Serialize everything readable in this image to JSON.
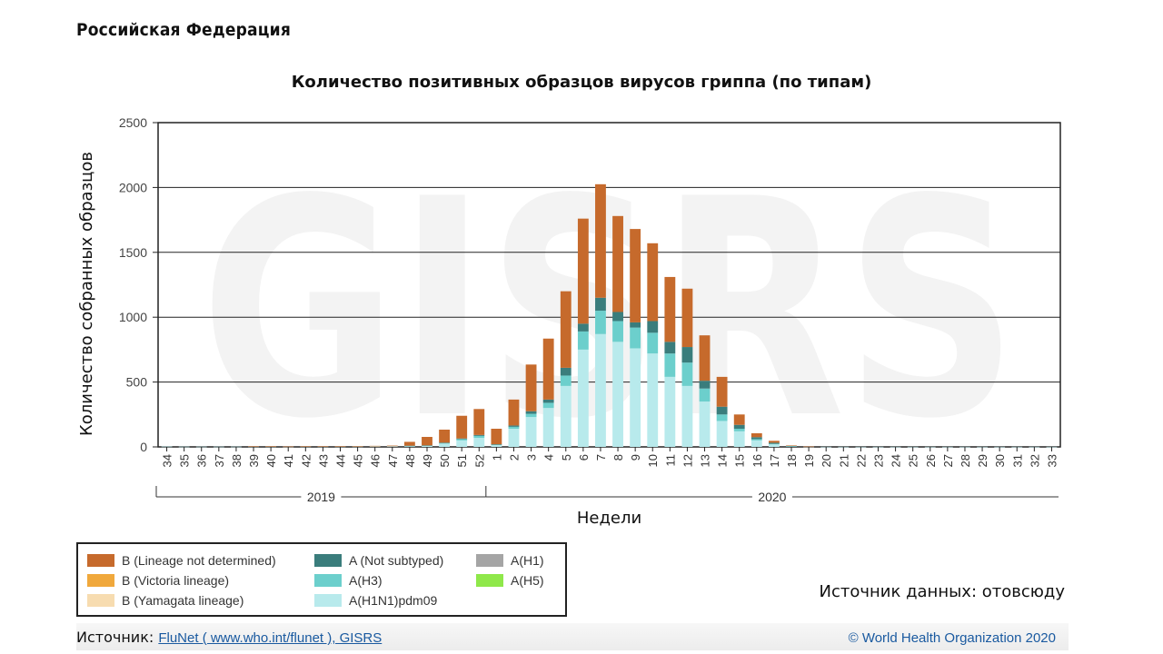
{
  "header": {
    "country": "Российская Федерация"
  },
  "chart_data": {
    "type": "bar",
    "stacked": true,
    "title": "Количество позитивных образцов вирусов гриппа (по типам)",
    "watermark": "GISRS",
    "xlabel": "Недели",
    "ylabel": "Количество собранных образцов",
    "ylim": [
      0,
      2500
    ],
    "yticks": [
      "0",
      "500",
      "1000",
      "1500",
      "2000",
      "2500"
    ],
    "grid": true,
    "year_groups": [
      {
        "label": "2019",
        "from_index": 0,
        "to_index": 18
      },
      {
        "label": "2020",
        "from_index": 19,
        "to_index": 51
      }
    ],
    "categories": [
      "34",
      "35",
      "36",
      "37",
      "38",
      "39",
      "40",
      "41",
      "42",
      "43",
      "44",
      "45",
      "46",
      "47",
      "48",
      "49",
      "50",
      "51",
      "52",
      "1",
      "2",
      "3",
      "4",
      "5",
      "6",
      "7",
      "8",
      "9",
      "10",
      "11",
      "12",
      "13",
      "14",
      "15",
      "16",
      "17",
      "18",
      "19",
      "20",
      "21",
      "22",
      "23",
      "24",
      "25",
      "26",
      "27",
      "28",
      "29",
      "30",
      "31",
      "32",
      "33"
    ],
    "series": [
      {
        "name": "A(H1N1)pdm09",
        "color": "#b8eaec",
        "values": [
          3,
          2,
          2,
          2,
          2,
          3,
          3,
          2,
          3,
          3,
          3,
          3,
          4,
          5,
          8,
          10,
          25,
          50,
          70,
          15,
          140,
          230,
          300,
          470,
          750,
          870,
          810,
          760,
          720,
          540,
          470,
          350,
          200,
          120,
          50,
          20,
          5,
          2,
          1,
          1,
          1,
          1,
          1,
          1,
          1,
          1,
          1,
          1,
          1,
          1,
          1,
          1
        ]
      },
      {
        "name": "A(H3)",
        "color": "#6ccfcc",
        "values": [
          0,
          0,
          0,
          0,
          0,
          0,
          0,
          0,
          0,
          0,
          0,
          0,
          0,
          0,
          0,
          0,
          5,
          10,
          15,
          3,
          15,
          25,
          40,
          80,
          140,
          180,
          160,
          160,
          160,
          180,
          180,
          100,
          50,
          20,
          10,
          4,
          1,
          0,
          0,
          0,
          0,
          0,
          0,
          0,
          0,
          0,
          0,
          0,
          0,
          0,
          0,
          0
        ]
      },
      {
        "name": "A(Not subtyped)",
        "color": "#3a7d7c",
        "values": [
          0,
          0,
          0,
          0,
          0,
          0,
          0,
          0,
          0,
          0,
          0,
          0,
          0,
          0,
          1,
          2,
          3,
          5,
          7,
          2,
          10,
          20,
          25,
          60,
          60,
          100,
          70,
          40,
          90,
          90,
          120,
          60,
          60,
          30,
          15,
          8,
          2,
          0,
          0,
          0,
          0,
          0,
          0,
          0,
          0,
          0,
          0,
          0,
          0,
          0,
          0,
          0
        ]
      },
      {
        "name": "A(H1)",
        "color": "#a5a5a5",
        "values": [
          0,
          0,
          0,
          0,
          0,
          0,
          0,
          0,
          0,
          0,
          0,
          0,
          0,
          0,
          0,
          0,
          0,
          0,
          0,
          0,
          0,
          0,
          0,
          0,
          0,
          0,
          0,
          0,
          0,
          0,
          0,
          0,
          0,
          0,
          0,
          0,
          0,
          0,
          0,
          0,
          0,
          0,
          0,
          0,
          0,
          0,
          0,
          0,
          0,
          0,
          0,
          0
        ]
      },
      {
        "name": "A(H5)",
        "color": "#8fe84a",
        "values": [
          0,
          0,
          0,
          0,
          0,
          0,
          0,
          0,
          0,
          0,
          0,
          0,
          0,
          0,
          0,
          0,
          0,
          0,
          0,
          0,
          0,
          0,
          0,
          0,
          0,
          0,
          0,
          0,
          0,
          0,
          0,
          0,
          0,
          0,
          0,
          0,
          0,
          0,
          0,
          0,
          0,
          0,
          0,
          0,
          0,
          0,
          0,
          0,
          0,
          0,
          0,
          0
        ]
      },
      {
        "name": "B (Yamagata lineage)",
        "color": "#f7dcb0",
        "values": [
          0,
          0,
          0,
          0,
          0,
          0,
          0,
          0,
          0,
          0,
          0,
          0,
          0,
          0,
          0,
          0,
          0,
          0,
          0,
          0,
          0,
          0,
          0,
          0,
          0,
          0,
          0,
          0,
          0,
          0,
          0,
          0,
          0,
          0,
          0,
          0,
          0,
          0,
          0,
          0,
          0,
          0,
          0,
          0,
          0,
          0,
          0,
          0,
          0,
          0,
          0,
          0
        ]
      },
      {
        "name": "B (Victoria lineage)",
        "color": "#f0a83c",
        "values": [
          0,
          0,
          0,
          0,
          0,
          0,
          0,
          0,
          0,
          0,
          0,
          0,
          0,
          0,
          0,
          0,
          0,
          0,
          0,
          0,
          0,
          0,
          0,
          0,
          0,
          0,
          0,
          0,
          0,
          0,
          0,
          0,
          0,
          0,
          0,
          0,
          0,
          0,
          0,
          0,
          0,
          0,
          0,
          0,
          0,
          0,
          0,
          0,
          0,
          0,
          0,
          0
        ]
      },
      {
        "name": "B (Lineage not determined)",
        "color": "#c66a2c",
        "values": [
          0,
          0,
          0,
          0,
          0,
          2,
          2,
          1,
          2,
          2,
          2,
          3,
          4,
          5,
          30,
          65,
          100,
          175,
          200,
          120,
          200,
          360,
          470,
          590,
          810,
          875,
          740,
          720,
          600,
          500,
          450,
          350,
          230,
          80,
          30,
          15,
          3,
          1,
          0,
          0,
          0,
          0,
          0,
          0,
          0,
          0,
          0,
          0,
          0,
          0,
          0,
          0
        ]
      }
    ]
  },
  "legend": {
    "items": [
      {
        "label": "B (Lineage not determined)",
        "color": "#c66a2c"
      },
      {
        "label": "B (Victoria lineage)",
        "color": "#f0a83c"
      },
      {
        "label": "B (Yamagata lineage)",
        "color": "#f7dcb0"
      },
      {
        "label": "A (Not subtyped)",
        "color": "#3a7d7c"
      },
      {
        "label": "A(H3)",
        "color": "#6ccfcc"
      },
      {
        "label": "A(H1N1)pdm09",
        "color": "#b8eaec"
      },
      {
        "label": "A(H1)",
        "color": "#a5a5a5"
      },
      {
        "label": "A(H5)",
        "color": "#8fe84a"
      }
    ]
  },
  "data_source": "Источник данных: отовсюду",
  "footer": {
    "source_label": "Источник:",
    "source_link": "FluNet ( www.who.int/flunet ), GISRS",
    "copyright": "© World Health Organization 2020"
  }
}
